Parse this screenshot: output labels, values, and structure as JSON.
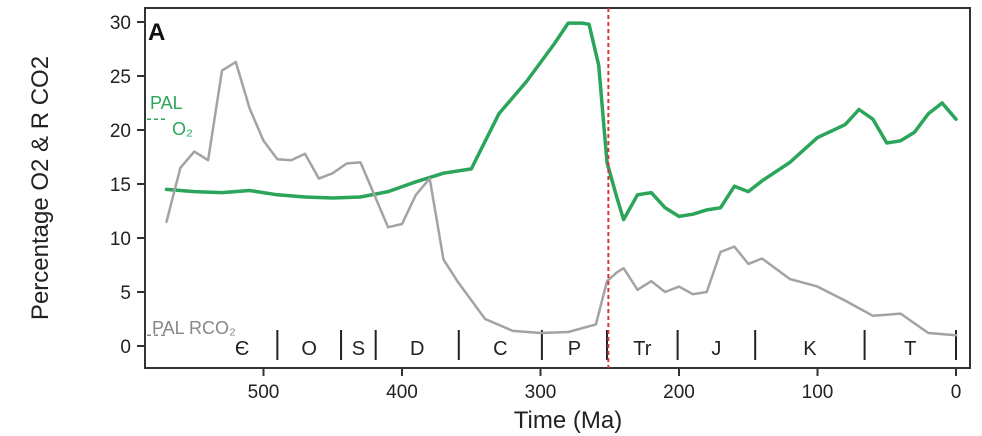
{
  "chart_data": {
    "type": "line",
    "panel_label": "A",
    "xlabel": "Time (Ma)",
    "ylabel": "Percentage O2 & R CO2",
    "xlim": [
      590,
      0
    ],
    "ylim": [
      0,
      30
    ],
    "x_reversed": true,
    "x_ticks": [
      500,
      400,
      300,
      200,
      100,
      0
    ],
    "y_ticks": [
      0,
      5,
      10,
      15,
      20,
      25,
      30
    ],
    "grid": false,
    "colors": {
      "o2": "#2aa55a",
      "rco2": "#a3a3a3",
      "boundary": "#e03030",
      "axis": "#333333"
    },
    "series": [
      {
        "key": "o2",
        "x": [
          570,
          550,
          530,
          510,
          490,
          470,
          450,
          430,
          410,
          390,
          370,
          350,
          330,
          310,
          290,
          280,
          270,
          265,
          258,
          252,
          245,
          240,
          230,
          220,
          210,
          200,
          190,
          180,
          170,
          160,
          150,
          140,
          120,
          100,
          80,
          70,
          60,
          50,
          40,
          30,
          20,
          10,
          0
        ],
        "values": [
          14.5,
          14.3,
          14.2,
          14.4,
          14.0,
          13.8,
          13.7,
          13.8,
          14.3,
          15.2,
          16.0,
          16.4,
          21.5,
          24.5,
          28.0,
          29.9,
          29.9,
          29.8,
          26.0,
          17.0,
          13.8,
          11.7,
          14.0,
          14.2,
          12.8,
          12.0,
          12.2,
          12.6,
          12.8,
          14.8,
          14.3,
          15.3,
          17.0,
          19.3,
          20.5,
          21.9,
          21.0,
          18.8,
          19.0,
          19.8,
          21.5,
          22.5,
          21.0
        ]
      },
      {
        "key": "rco2",
        "x": [
          570,
          560,
          550,
          540,
          530,
          520,
          510,
          500,
          490,
          480,
          470,
          460,
          450,
          440,
          430,
          420,
          410,
          400,
          390,
          380,
          370,
          360,
          340,
          320,
          300,
          280,
          260,
          252,
          245,
          240,
          230,
          220,
          210,
          200,
          190,
          180,
          170,
          160,
          150,
          140,
          120,
          100,
          80,
          60,
          40,
          20,
          0
        ],
        "values": [
          11.5,
          16.5,
          18.0,
          17.2,
          25.5,
          26.3,
          22.0,
          19.0,
          17.3,
          17.2,
          17.8,
          15.5,
          16.0,
          16.9,
          17.0,
          14.0,
          11.0,
          11.3,
          14.0,
          15.5,
          8.0,
          6.0,
          2.5,
          1.4,
          1.2,
          1.3,
          2.0,
          6.0,
          6.8,
          7.2,
          5.2,
          6.0,
          5.0,
          5.5,
          4.8,
          5.0,
          8.7,
          9.2,
          7.6,
          8.1,
          6.2,
          5.5,
          4.2,
          2.8,
          3.0,
          1.2,
          1.0
        ]
      }
    ],
    "boundary_line_x": 251,
    "pal_o2": 21,
    "pal_rco2": 1,
    "annotations": [
      {
        "id": "pal-o2-line1",
        "text": "PAL",
        "color": "#2aa55a"
      },
      {
        "id": "pal-o2-line2",
        "text": "O₂",
        "color": "#2aa55a"
      },
      {
        "id": "pal-rco2",
        "text": "PAL RCO₂",
        "color": "#888888"
      }
    ],
    "periods": [
      {
        "label": "Є",
        "start": 541,
        "end": 490
      },
      {
        "label": "O",
        "start": 490,
        "end": 444
      },
      {
        "label": "S",
        "start": 444,
        "end": 419
      },
      {
        "label": "D",
        "start": 419,
        "end": 359
      },
      {
        "label": "C",
        "start": 359,
        "end": 299
      },
      {
        "label": "P",
        "start": 299,
        "end": 252
      },
      {
        "label": "Tr",
        "start": 252,
        "end": 201
      },
      {
        "label": "J",
        "start": 201,
        "end": 145
      },
      {
        "label": "K",
        "start": 145,
        "end": 66
      },
      {
        "label": "T",
        "start": 66,
        "end": 0
      }
    ]
  }
}
